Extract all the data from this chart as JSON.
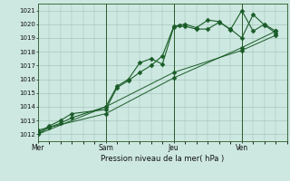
{
  "bg_color": "#cde8e0",
  "grid_color": "#9bbfb5",
  "line_color": "#1a5c28",
  "marker_color": "#1a5c28",
  "xlabel": "Pression niveau de la mer( hPa )",
  "ylim": [
    1011.5,
    1021.5
  ],
  "yticks": [
    1012,
    1013,
    1014,
    1015,
    1016,
    1017,
    1018,
    1019,
    1020,
    1021
  ],
  "day_labels": [
    "Mer",
    "Sam",
    "Jeu",
    "Ven"
  ],
  "day_positions": [
    0,
    36,
    72,
    108
  ],
  "vlines": [
    36,
    72,
    108
  ],
  "xmin": 0,
  "xmax": 132,
  "series1_x": [
    0,
    6,
    12,
    18,
    36,
    42,
    48,
    54,
    60,
    66,
    72,
    75,
    78,
    84,
    90,
    96,
    102,
    108,
    114,
    120,
    126
  ],
  "series1_y": [
    1012.0,
    1012.5,
    1012.8,
    1013.2,
    1014.0,
    1015.5,
    1016.0,
    1017.2,
    1017.5,
    1017.1,
    1019.8,
    1019.95,
    1020.0,
    1019.75,
    1020.3,
    1020.2,
    1019.6,
    1021.0,
    1019.5,
    1020.0,
    1019.5
  ],
  "series2_x": [
    0,
    6,
    12,
    18,
    36,
    42,
    48,
    54,
    60,
    66,
    72,
    78,
    84,
    90,
    96,
    102,
    108,
    114,
    120,
    126
  ],
  "series2_y": [
    1012.1,
    1012.6,
    1013.0,
    1013.5,
    1013.8,
    1015.4,
    1015.9,
    1016.5,
    1017.0,
    1017.7,
    1019.85,
    1019.85,
    1019.65,
    1019.65,
    1020.15,
    1019.65,
    1019.0,
    1020.7,
    1019.95,
    1019.35
  ],
  "series3_x": [
    0,
    36,
    72,
    108,
    126
  ],
  "series3_y": [
    1012.0,
    1014.0,
    1016.5,
    1018.1,
    1019.2
  ],
  "series4_x": [
    0,
    36,
    72,
    108,
    126
  ],
  "series4_y": [
    1012.3,
    1013.5,
    1016.1,
    1018.3,
    1019.5
  ]
}
